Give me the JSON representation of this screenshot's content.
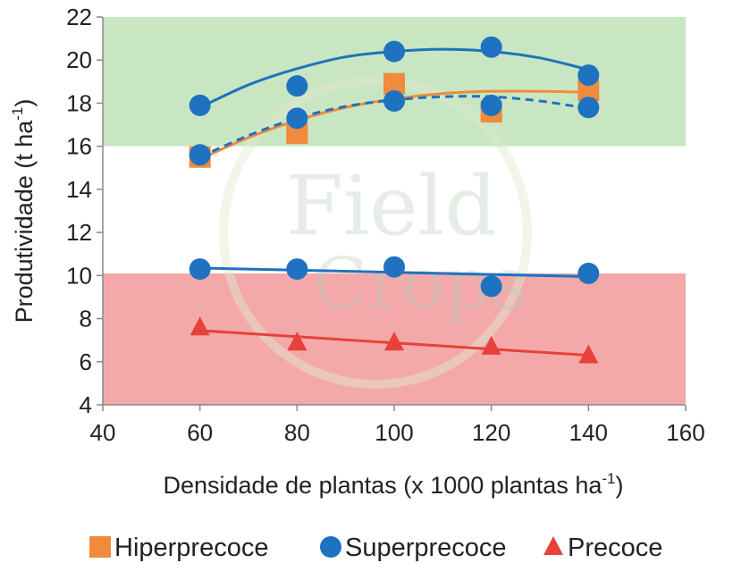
{
  "chart_data": {
    "type": "scatter",
    "xlabel": "Densidade de plantas (x 1000 plantas ha",
    "xlabel_sup": "-1",
    "xlabel_tail": ")",
    "ylabel": "Produtividade  (t ha",
    "ylabel_sup": "-1",
    "ylabel_tail": ")",
    "xlim": [
      40,
      160
    ],
    "ylim": [
      4,
      22
    ],
    "x_ticks": [
      40,
      60,
      80,
      100,
      120,
      140,
      160
    ],
    "y_ticks": [
      4,
      6,
      8,
      10,
      12,
      14,
      16,
      18,
      20,
      22
    ],
    "bands": [
      {
        "name": "high",
        "from": 16,
        "to": 22,
        "color": "#c9e6c2"
      },
      {
        "name": "low",
        "from": 4,
        "to": 10.1,
        "color": "#f3a9a9"
      }
    ],
    "series": [
      {
        "name": "Hiperprecoce",
        "marker": "square",
        "color": "#f08a3c",
        "x": [
          60,
          80,
          100,
          120,
          140
        ],
        "y": [
          15.5,
          16.6,
          18.9,
          17.6,
          18.6
        ],
        "trend": "solid",
        "trend_x": [
          60,
          70,
          80,
          90,
          100,
          110,
          120,
          130,
          140
        ],
        "trend_y": [
          15.4,
          16.4,
          17.2,
          17.8,
          18.2,
          18.45,
          18.55,
          18.55,
          18.5
        ]
      },
      {
        "name": "Superprecoce",
        "marker": "circle",
        "color": "#1e72c0",
        "x": [
          60,
          80,
          100,
          120,
          140
        ],
        "y": [
          17.9,
          18.8,
          20.4,
          20.6,
          19.3
        ],
        "trend": "solid",
        "trend_x": [
          60,
          70,
          80,
          90,
          100,
          110,
          120,
          130,
          140
        ],
        "trend_y": [
          17.8,
          18.85,
          19.6,
          20.15,
          20.4,
          20.5,
          20.4,
          20.1,
          19.55
        ]
      },
      {
        "name": "Superprecoce",
        "marker": "circle",
        "color": "#1e72c0",
        "x": [
          60,
          80,
          100,
          120,
          140
        ],
        "y": [
          15.6,
          17.3,
          18.1,
          17.9,
          17.8
        ],
        "trend": "dashed",
        "trend_x": [
          60,
          70,
          80,
          90,
          100,
          110,
          120,
          130,
          140
        ],
        "trend_y": [
          15.5,
          16.5,
          17.3,
          17.85,
          18.15,
          18.3,
          18.3,
          18.1,
          17.75
        ]
      },
      {
        "name": "Superprecoce",
        "marker": "circle",
        "color": "#1e72c0",
        "x": [
          60,
          80,
          100,
          120,
          140
        ],
        "y": [
          10.3,
          10.3,
          10.4,
          9.5,
          10.1
        ],
        "trend": "solid",
        "trend_x": [
          60,
          140
        ],
        "trend_y": [
          10.35,
          9.95
        ]
      },
      {
        "name": "Precoce",
        "marker": "triangle",
        "color": "#e8403a",
        "x": [
          60,
          80,
          100,
          120,
          140
        ],
        "y": [
          7.6,
          6.9,
          6.9,
          6.7,
          6.3
        ],
        "trend": "solid",
        "trend_x": [
          60,
          140
        ],
        "trend_y": [
          7.45,
          6.3
        ]
      }
    ],
    "legend": [
      {
        "label": "Hiperprecoce",
        "marker": "square",
        "color": "#f08a3c"
      },
      {
        "label": "Superprecoce",
        "marker": "circle",
        "color": "#1e72c0"
      },
      {
        "label": "Precoce",
        "marker": "triangle",
        "color": "#e8403a"
      }
    ],
    "legend_position": "bottom"
  },
  "watermark": {
    "line1": "Field",
    "line2": "Crops"
  }
}
